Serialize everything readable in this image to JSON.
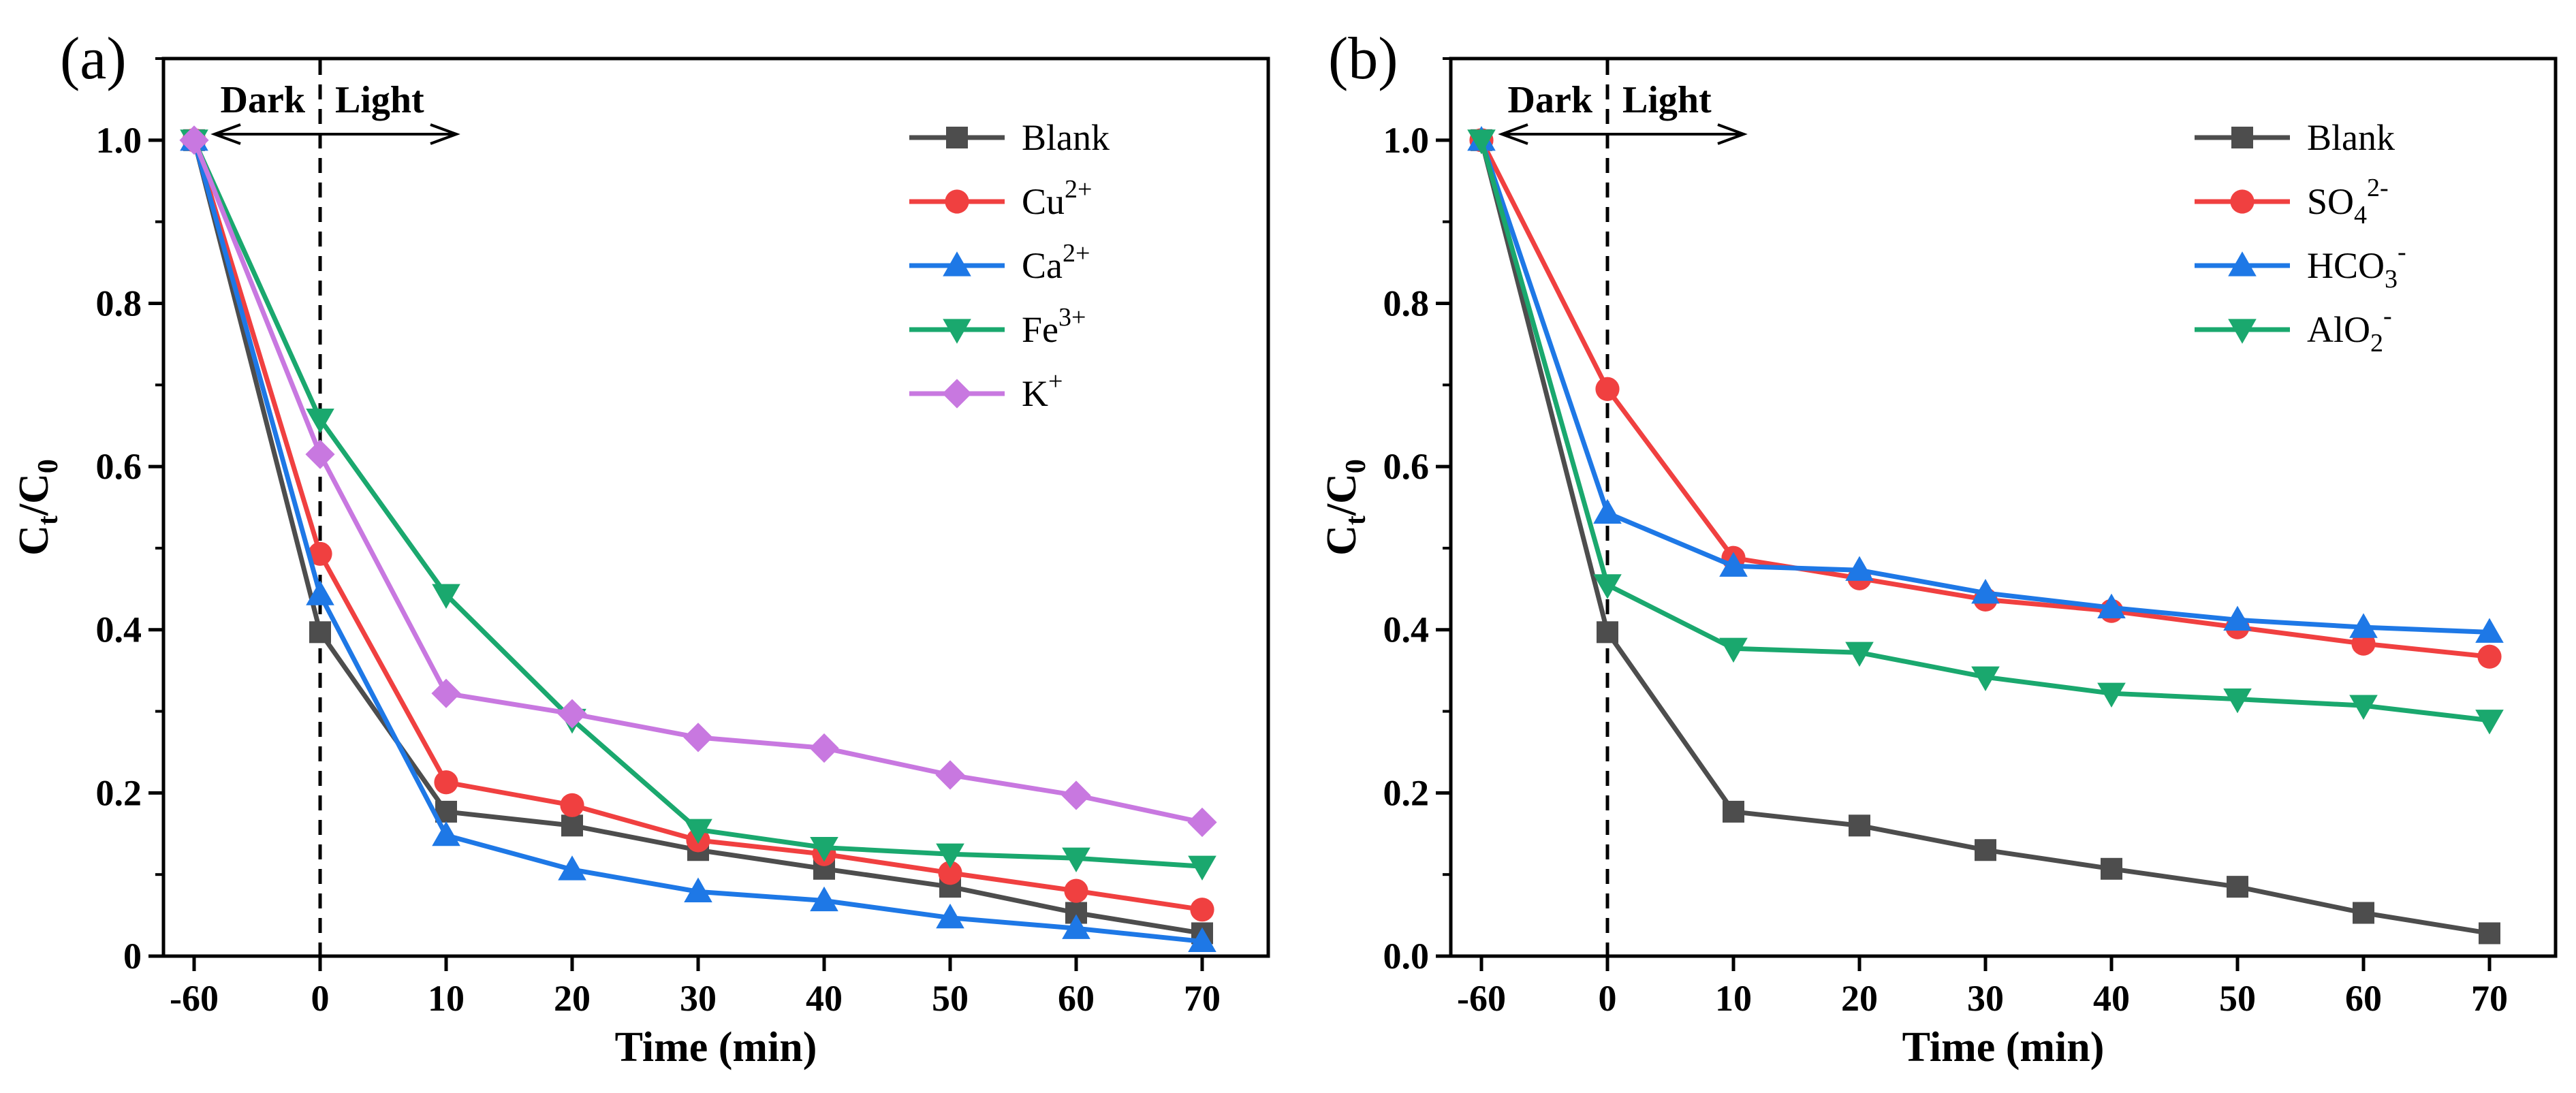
{
  "chart_data": [
    {
      "panel_label": "(a)",
      "type": "line",
      "xlabel": "Time (min)",
      "ylabel": "Ct/C0",
      "ylabel_parts": {
        "main": "C",
        "sub1": "t",
        "slash": "/C",
        "sub2": "0"
      },
      "x": [
        -60,
        0,
        10,
        20,
        30,
        40,
        50,
        60,
        70
      ],
      "x_tick_labels": [
        "-60",
        "0",
        "10",
        "20",
        "30",
        "40",
        "50",
        "60",
        "70"
      ],
      "y_ticks": [
        0.0,
        0.2,
        0.4,
        0.6,
        0.8,
        1.0
      ],
      "y_tick_labels": [
        "0",
        "0.2",
        "0.4",
        "0.6",
        "0.8",
        "1.0"
      ],
      "ylim": [
        0,
        1.1
      ],
      "annotations": {
        "dark": "Dark",
        "light": "Light"
      },
      "legend_position": "top-right",
      "series": [
        {
          "name": "Blank",
          "label_main": "Blank",
          "label_sup": "",
          "label_sub": "",
          "label_tail": "",
          "color": "#4d4d4d",
          "marker": "square",
          "values": [
            1.0,
            0.397,
            0.177,
            0.16,
            0.13,
            0.107,
            0.085,
            0.053,
            0.028
          ]
        },
        {
          "name": "Cu2+",
          "label_main": "Cu",
          "label_sup": "2+",
          "label_sub": "",
          "label_tail": "",
          "color": "#f04040",
          "marker": "circle",
          "values": [
            1.0,
            0.493,
            0.213,
            0.185,
            0.142,
            0.125,
            0.102,
            0.08,
            0.057
          ]
        },
        {
          "name": "Ca2+",
          "label_main": "Ca",
          "label_sup": "2+",
          "label_sub": "",
          "label_tail": "",
          "color": "#1e78e6",
          "marker": "triangle-up",
          "values": [
            1.0,
            0.443,
            0.148,
            0.106,
            0.079,
            0.068,
            0.047,
            0.034,
            0.018
          ]
        },
        {
          "name": "Fe3+",
          "label_main": "Fe",
          "label_sup": "3+",
          "label_sub": "",
          "label_tail": "",
          "color": "#1aa86e",
          "marker": "triangle-down",
          "values": [
            1.0,
            0.658,
            0.443,
            0.29,
            0.155,
            0.133,
            0.125,
            0.12,
            0.11
          ]
        },
        {
          "name": "K+",
          "label_main": "K",
          "label_sup": "+",
          "label_sub": "",
          "label_tail": "",
          "color": "#c878e0",
          "marker": "diamond",
          "values": [
            1.0,
            0.615,
            0.322,
            0.297,
            0.268,
            0.255,
            0.222,
            0.197,
            0.164
          ]
        }
      ]
    },
    {
      "panel_label": "(b)",
      "type": "line",
      "xlabel": "Time (min)",
      "ylabel": "Ct/C0",
      "ylabel_parts": {
        "main": "C",
        "sub1": "t",
        "slash": "/C",
        "sub2": "0"
      },
      "x": [
        -60,
        0,
        10,
        20,
        30,
        40,
        50,
        60,
        70
      ],
      "x_tick_labels": [
        "-60",
        "0",
        "10",
        "20",
        "30",
        "40",
        "50",
        "60",
        "70"
      ],
      "y_ticks": [
        0.0,
        0.2,
        0.4,
        0.6,
        0.8,
        1.0
      ],
      "y_tick_labels": [
        "0.0",
        "0.2",
        "0.4",
        "0.6",
        "0.8",
        "1.0"
      ],
      "ylim": [
        0,
        1.1
      ],
      "annotations": {
        "dark": "Dark",
        "light": "Light"
      },
      "legend_position": "top-right",
      "series": [
        {
          "name": "Blank",
          "label_main": "Blank",
          "label_sup": "",
          "label_sub": "",
          "label_tail": "",
          "color": "#4d4d4d",
          "marker": "square",
          "values": [
            1.0,
            0.397,
            0.177,
            0.16,
            0.13,
            0.107,
            0.085,
            0.053,
            0.028
          ]
        },
        {
          "name": "SO42-",
          "label_main": "SO",
          "label_sup": "2-",
          "label_sub": "4",
          "label_tail": "",
          "color": "#f04040",
          "marker": "circle",
          "values": [
            1.0,
            0.695,
            0.488,
            0.463,
            0.437,
            0.423,
            0.403,
            0.383,
            0.367
          ]
        },
        {
          "name": "HCO3-",
          "label_main": "HCO",
          "label_sup": "-",
          "label_sub": "3",
          "label_tail": "",
          "color": "#1e78e6",
          "marker": "triangle-up",
          "values": [
            1.0,
            0.543,
            0.478,
            0.473,
            0.445,
            0.427,
            0.412,
            0.403,
            0.397
          ]
        },
        {
          "name": "AlO2-",
          "label_main": "AlO",
          "label_sup": "-",
          "label_sub": "2",
          "label_tail": "",
          "color": "#1aa86e",
          "marker": "triangle-down",
          "values": [
            1.0,
            0.455,
            0.377,
            0.372,
            0.342,
            0.322,
            0.315,
            0.307,
            0.289
          ]
        }
      ]
    }
  ]
}
